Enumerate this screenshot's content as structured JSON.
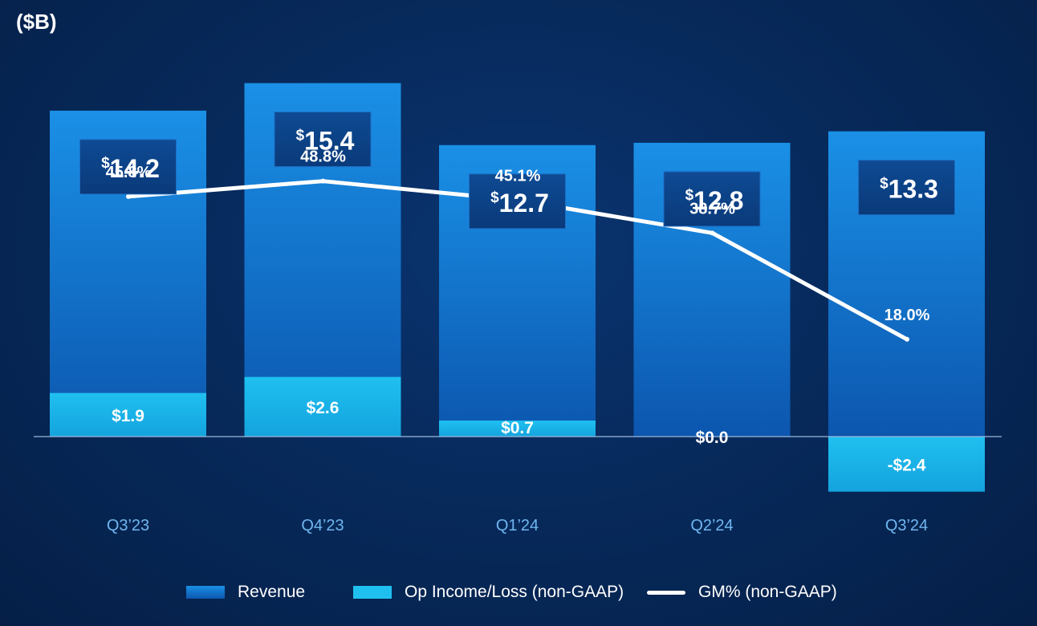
{
  "unit_label": "($B)",
  "colors": {
    "revenue": "#1e88e0",
    "revenue_dark": "#0d5bb0",
    "op_income": "#18b8ec",
    "gm_line": "#ffffff",
    "axis_label": "#6fb6f0"
  },
  "legend": {
    "revenue": "Revenue",
    "op_income": "Op Income/Loss (non-GAAP)",
    "gm": "GM% (non-GAAP)"
  },
  "chart_data": {
    "type": "bar",
    "categories": [
      "Q3’23",
      "Q4’23",
      "Q1’24",
      "Q2’24",
      "Q3’24"
    ],
    "series": [
      {
        "name": "Revenue",
        "values": [
          14.2,
          15.4,
          12.7,
          12.8,
          13.3
        ],
        "labels": [
          "14.2",
          "15.4",
          "12.7",
          "12.8",
          "13.3"
        ]
      },
      {
        "name": "Op Income/Loss (non-GAAP)",
        "values": [
          1.9,
          2.6,
          0.7,
          0.0,
          -2.4
        ],
        "labels": [
          "$1.9",
          "$2.6",
          "$0.7",
          "$0.0",
          "-$2.4"
        ]
      },
      {
        "name": "GM% (non-GAAP)",
        "type": "line",
        "values": [
          45.8,
          48.8,
          45.1,
          38.7,
          18.0
        ],
        "labels": [
          "45.8%",
          "48.8%",
          "45.1%",
          "38.7%",
          "18.0%"
        ]
      }
    ],
    "title": "",
    "ylabel": "($B)",
    "ylim": [
      -2.4,
      15.4
    ],
    "legend_position": "bottom"
  }
}
